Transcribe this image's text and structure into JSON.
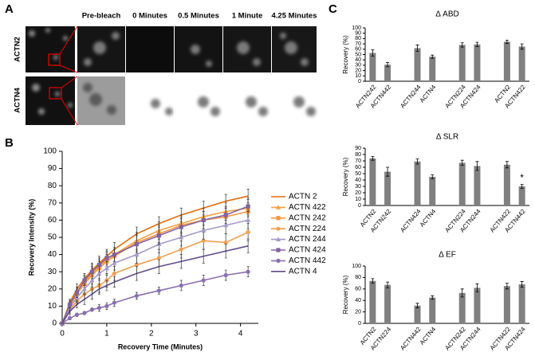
{
  "panel_labels": [
    "A",
    "B",
    "C"
  ],
  "images": {
    "rows": [
      "ACTN2",
      "ACTN4"
    ],
    "columns": [
      "Pre-bleach",
      "0 Minutes",
      "0.5 Minutes",
      "1 Minute",
      "4.25 Minutes"
    ]
  },
  "chart_data": [
    {
      "type": "line",
      "xlabel": "Recovery Time (Minutes)",
      "ylabel": "Recovery Intensity (%)",
      "x": [
        0,
        0.17,
        0.33,
        0.5,
        0.67,
        0.83,
        1,
        1.17,
        1.67,
        2.17,
        2.67,
        3.17,
        3.67,
        4.17
      ],
      "xlim": [
        0,
        4.4
      ],
      "xticks": [
        0,
        1,
        2,
        3,
        4
      ],
      "ylim": [
        0,
        100
      ],
      "yticks": [
        0,
        10,
        20,
        30,
        40,
        50,
        60,
        70,
        80,
        90,
        100
      ],
      "legend": "right",
      "series": [
        {
          "name": "ACTN 2",
          "color": "#e46c0a",
          "marker": "none",
          "values": [
            0,
            12,
            20,
            26,
            31,
            35,
            39,
            43,
            52,
            58,
            63,
            67,
            71,
            74
          ],
          "errors": [
            0,
            2,
            3,
            3,
            4,
            4,
            4,
            4,
            4,
            4,
            4,
            4,
            4,
            4
          ]
        },
        {
          "name": "ACTN 422",
          "color": "#f5a040",
          "marker": "triangle",
          "values": [
            0,
            11,
            18,
            24,
            29,
            33,
            37,
            40,
            48,
            54,
            58,
            62,
            65,
            67
          ],
          "errors": [
            0,
            2,
            3,
            3,
            4,
            4,
            4,
            4,
            5,
            5,
            5,
            5,
            5,
            5
          ]
        },
        {
          "name": "ACTN 242",
          "color": "#f79646",
          "marker": "square",
          "values": [
            0,
            10,
            17,
            23,
            28,
            32,
            36,
            39,
            47,
            52,
            57,
            60,
            62,
            65
          ],
          "errors": [
            0,
            2,
            3,
            3,
            4,
            4,
            4,
            4,
            5,
            5,
            5,
            5,
            5,
            5
          ]
        },
        {
          "name": "ACTN 224",
          "color": "#f0a050",
          "marker": "circle",
          "values": [
            0,
            8,
            13,
            17,
            20,
            22,
            25,
            29,
            34,
            38,
            43,
            48,
            47,
            53
          ],
          "errors": [
            0,
            2,
            2,
            3,
            3,
            4,
            4,
            4,
            5,
            5,
            5,
            5,
            5,
            5
          ]
        },
        {
          "name": "ACTN 244",
          "color": "#a598c8",
          "marker": "triangle",
          "values": [
            0,
            9,
            15,
            20,
            25,
            29,
            32,
            35,
            40,
            46,
            50,
            54,
            57,
            60
          ],
          "errors": [
            0,
            2,
            3,
            3,
            4,
            4,
            4,
            4,
            5,
            5,
            5,
            5,
            5,
            5
          ]
        },
        {
          "name": "ACTN 424",
          "color": "#8064a2",
          "marker": "square",
          "values": [
            0,
            11,
            18,
            25,
            30,
            34,
            38,
            40,
            46,
            51,
            56,
            60,
            63,
            68
          ],
          "errors": [
            0,
            2,
            3,
            3,
            4,
            4,
            4,
            4,
            5,
            5,
            5,
            5,
            5,
            5
          ]
        },
        {
          "name": "ACTN 442",
          "color": "#8a6fb0",
          "marker": "circle",
          "values": [
            0,
            3,
            5,
            6,
            8,
            9,
            10,
            12,
            16,
            19,
            22,
            25,
            28,
            30
          ],
          "errors": [
            0,
            1,
            1,
            1,
            1,
            2,
            2,
            2,
            2,
            2,
            3,
            3,
            3,
            3
          ]
        },
        {
          "name": "ACTN 4",
          "color": "#5f4b8b",
          "marker": "none",
          "values": [
            0,
            7,
            11,
            14,
            17,
            20,
            22,
            24,
            29,
            33,
            36,
            39,
            42,
            45
          ],
          "errors": [
            0,
            2,
            2,
            3,
            3,
            3,
            3,
            3,
            4,
            4,
            4,
            4,
            4,
            4
          ]
        }
      ]
    },
    {
      "type": "bar",
      "title": "Δ ABD",
      "ylabel": "Recovery (%)",
      "color": "#808080",
      "categories": [
        "ACTN242",
        "ACTN442",
        null,
        "ACTN244",
        "ACTN4",
        null,
        "ACTN224",
        "ACTN424",
        null,
        "ACTN2",
        "ACTN422"
      ],
      "values": [
        53,
        31,
        null,
        62,
        46,
        null,
        68,
        69,
        null,
        74,
        65
      ],
      "errors": [
        6,
        4,
        null,
        6,
        3,
        null,
        4,
        4,
        null,
        3,
        5
      ],
      "ylim": [
        0,
        100
      ],
      "yticks": [
        0,
        10,
        20,
        30,
        40,
        50,
        60,
        70,
        80,
        90,
        100
      ]
    },
    {
      "type": "bar",
      "title": "Δ SLR",
      "ylabel": "Recovery (%)",
      "color": "#808080",
      "categories": [
        "ACTN2",
        "ACTN242",
        null,
        "ACTN424",
        "ACTN4",
        null,
        "ACTN224",
        "ACTN244",
        null,
        "ACTN422",
        "ACTN442"
      ],
      "values": [
        74,
        53,
        null,
        69,
        45,
        null,
        67,
        62,
        null,
        64,
        30
      ],
      "errors": [
        3,
        7,
        null,
        4,
        3,
        null,
        4,
        7,
        null,
        5,
        3
      ],
      "annotations": [
        {
          "text": "*",
          "category": "ACTN442"
        }
      ],
      "ylim": [
        0,
        90
      ],
      "yticks": [
        0,
        10,
        20,
        30,
        40,
        50,
        60,
        70,
        80,
        90
      ]
    },
    {
      "type": "bar",
      "title": "Δ EF",
      "ylabel": "Recovery (%)",
      "color": "#808080",
      "categories": [
        "ACTN2",
        "ACTN224",
        null,
        "ACTN442",
        "ACTN4",
        null,
        "ACTN242",
        "ACTN244",
        null,
        "ACTN422",
        "ACTN424"
      ],
      "values": [
        74,
        67,
        null,
        31,
        45,
        null,
        53,
        62,
        null,
        65,
        68
      ],
      "errors": [
        4,
        5,
        null,
        4,
        3,
        null,
        7,
        7,
        null,
        5,
        5
      ],
      "ylim": [
        0,
        100
      ],
      "yticks": [
        0,
        20,
        40,
        60,
        80,
        100
      ]
    }
  ]
}
